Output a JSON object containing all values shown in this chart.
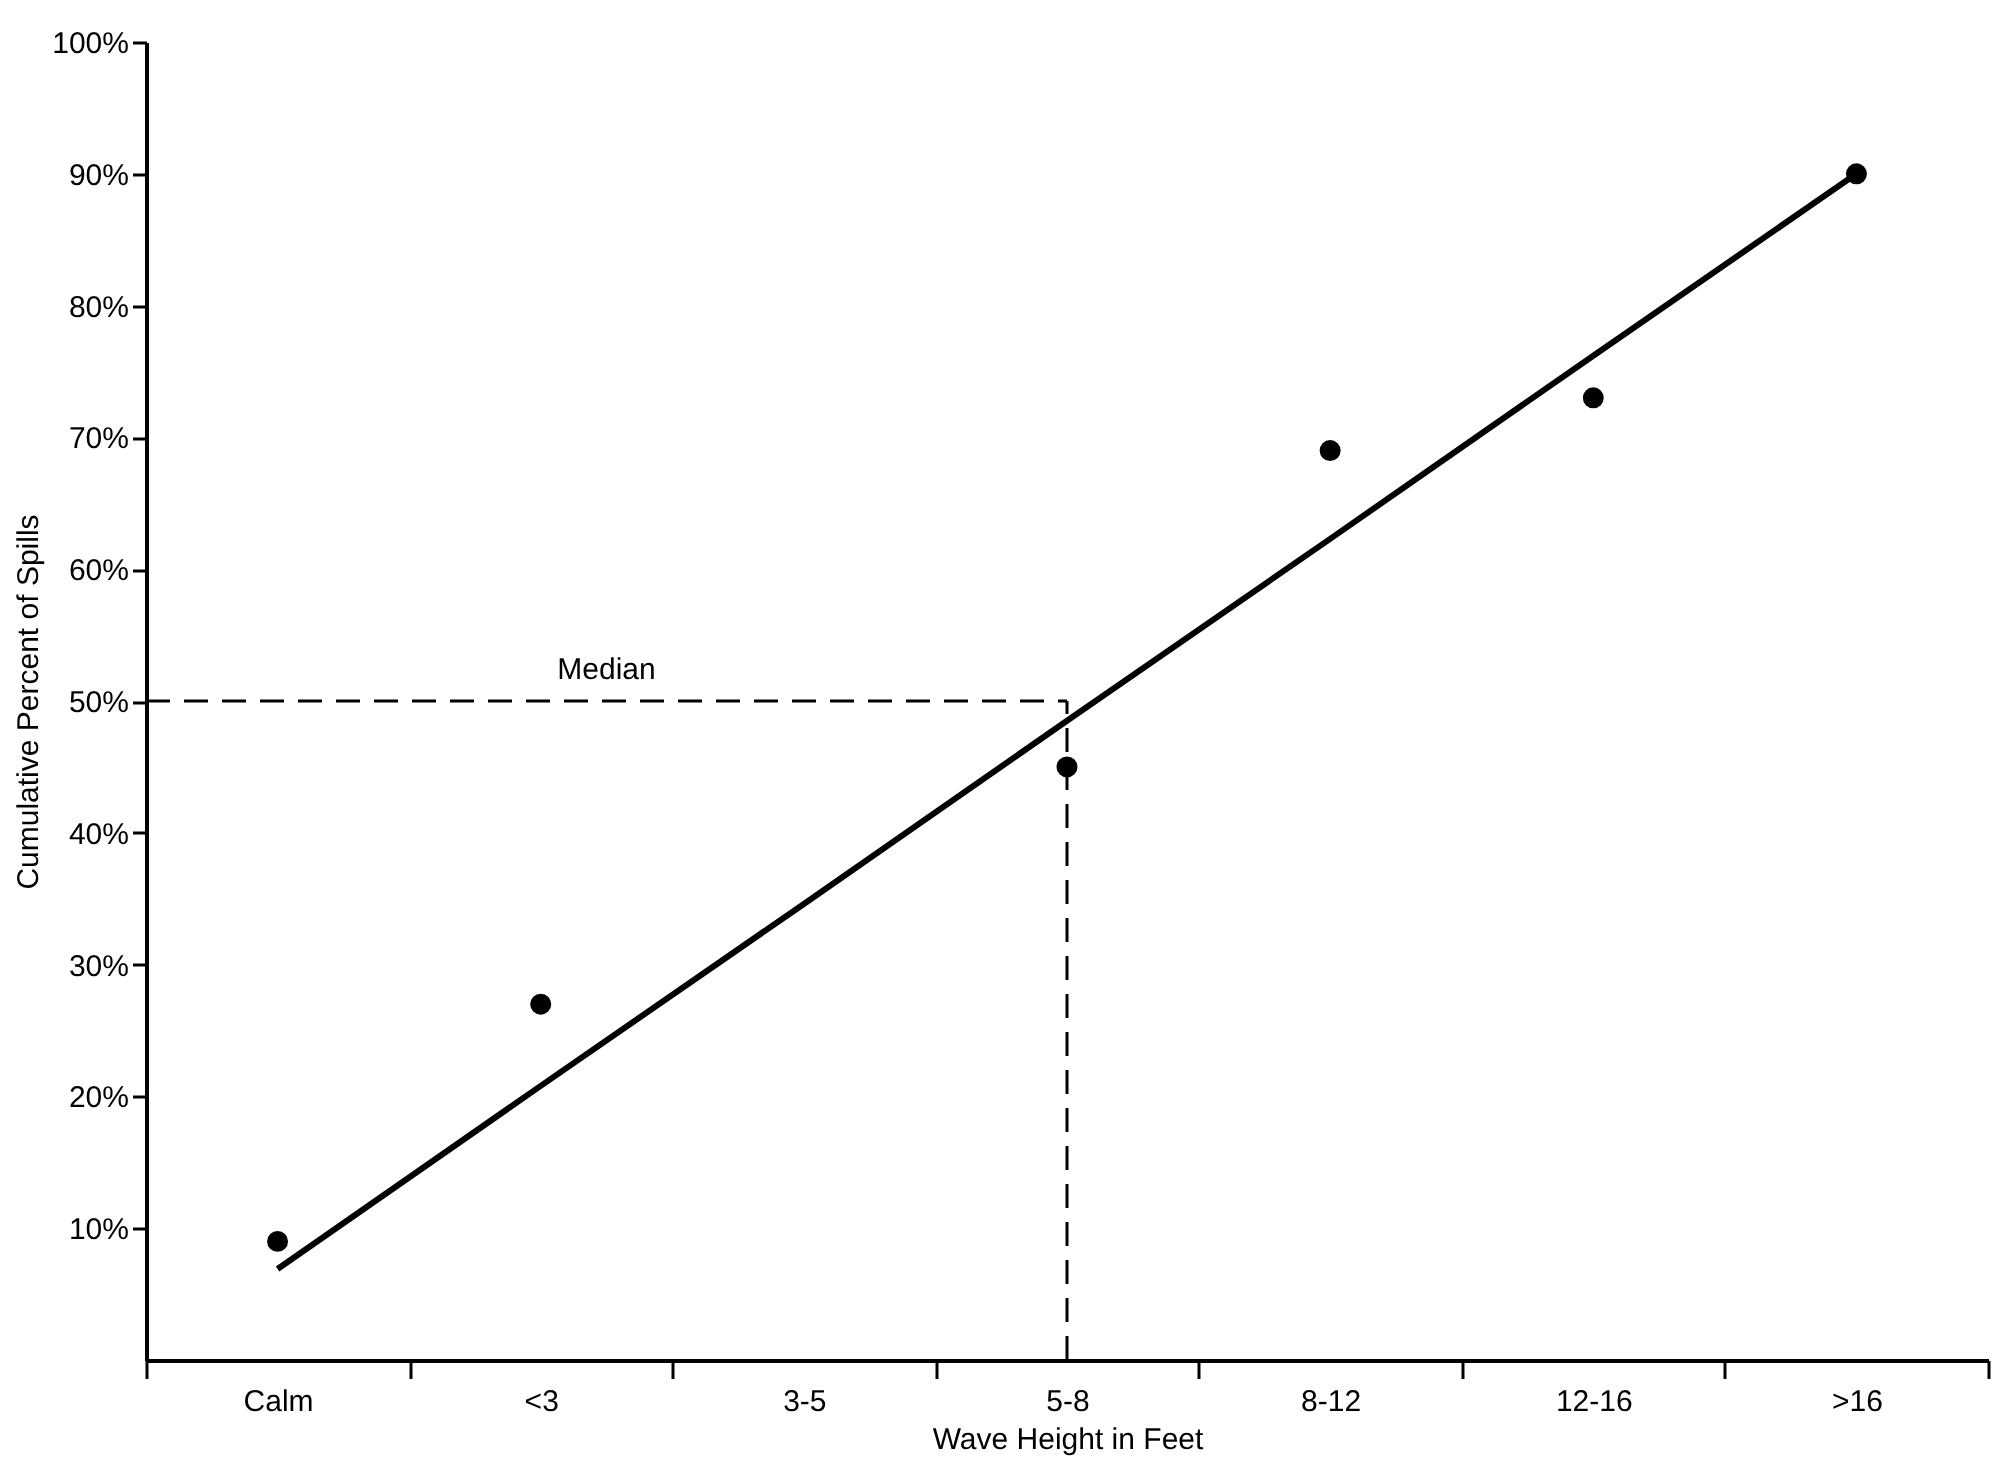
{
  "chart_data": {
    "type": "scatter",
    "xlabel": "Wave Height in Feet",
    "ylabel": "Cumulative Percent of Spills",
    "categories": [
      "Calm",
      "<3",
      "3-5",
      "5-8",
      "8-12",
      "12-16",
      ">16"
    ],
    "ylim": [
      0,
      100
    ],
    "yticks": [
      {
        "value": 10,
        "label": "10%"
      },
      {
        "value": 20,
        "label": "20%"
      },
      {
        "value": 30,
        "label": "30%"
      },
      {
        "value": 40,
        "label": "40%"
      },
      {
        "value": 50,
        "label": "50%"
      },
      {
        "value": 60,
        "label": "60%"
      },
      {
        "value": 70,
        "label": "70%"
      },
      {
        "value": 80,
        "label": "80%"
      },
      {
        "value": 90,
        "label": "90%"
      },
      {
        "value": 100,
        "label": "100%"
      }
    ],
    "grid": false,
    "series": [
      {
        "marker": "circle",
        "color": "#000000",
        "values": [
          9,
          27,
          null,
          45,
          69,
          73,
          90
        ]
      },
      {
        "type": "line",
        "line_style": "solid",
        "color": "#000000",
        "values": [
          6.9,
          20.8,
          34.6,
          48.5,
          62.3,
          76.2,
          90
        ]
      }
    ],
    "ref_lines": [
      {
        "axis": "y",
        "value": 50,
        "label": "Median",
        "line_style": "dashed",
        "color": "#000000"
      },
      {
        "axis": "x",
        "value": "5-8",
        "line_style": "dashed",
        "color": "#000000"
      }
    ]
  }
}
